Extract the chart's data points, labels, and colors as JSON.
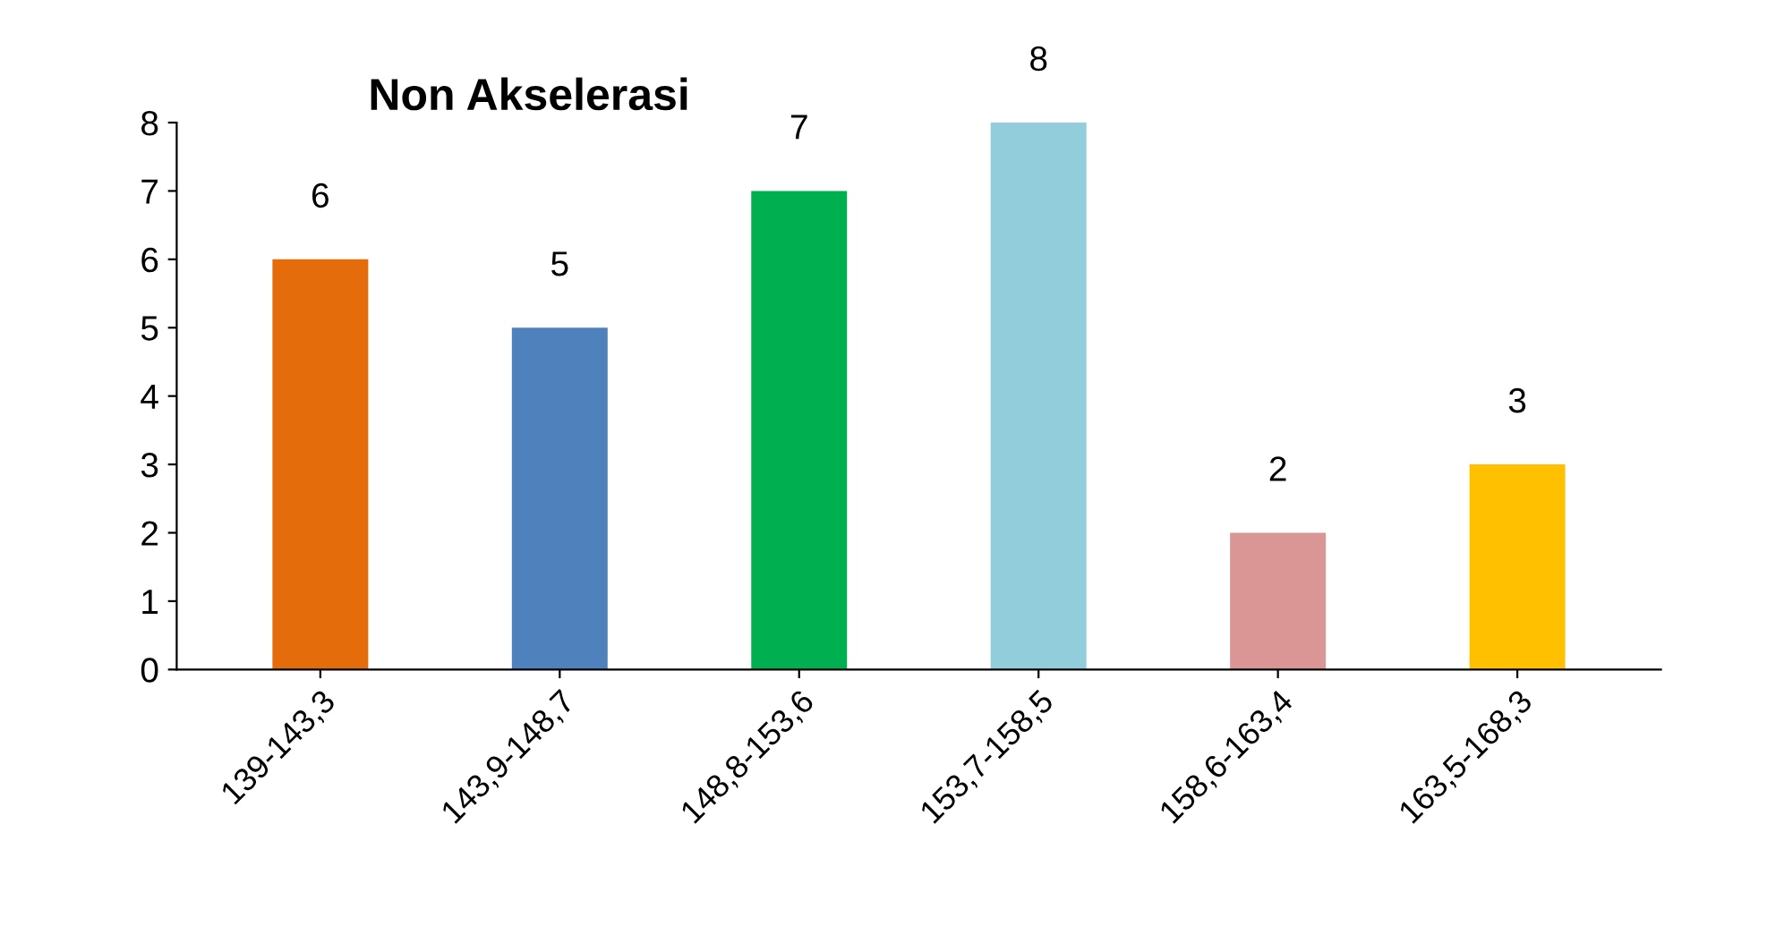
{
  "chart_data": {
    "type": "bar",
    "title": "Non Akselerasi",
    "categories": [
      "139-143,3",
      "143,9-148,7",
      "148,8-153,6",
      "153,7-158,5",
      "158,6-163,4",
      "163,5-168,3"
    ],
    "values": [
      6,
      5,
      7,
      8,
      2,
      3
    ],
    "colors": [
      "#e46c0a",
      "#4f81bd",
      "#00b050",
      "#92cddc",
      "#d99694",
      "#ffc000"
    ],
    "ylim": [
      0,
      8
    ],
    "yticks": [
      0,
      1,
      2,
      3,
      4,
      5,
      6,
      7,
      8
    ],
    "data_labels": true,
    "grid": false,
    "legend": false
  }
}
